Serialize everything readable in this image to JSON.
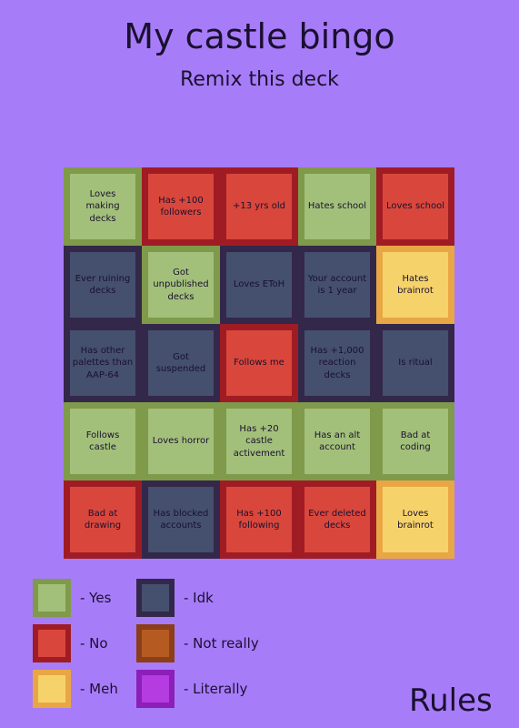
{
  "header": {
    "title": "My castle bingo",
    "subtitle": "Remix this deck"
  },
  "board": {
    "rows": [
      [
        {
          "label": "Loves making decks",
          "fill": "#a3c07a",
          "border": "#7f9a4a"
        },
        {
          "label": "Has +100 followers",
          "fill": "#d9473c",
          "border": "#a01c24"
        },
        {
          "label": "+13 yrs old",
          "fill": "#d9473c",
          "border": "#a01c24"
        },
        {
          "label": "Hates school",
          "fill": "#a3c07a",
          "border": "#7f9a4a"
        },
        {
          "label": "Loves school",
          "fill": "#d9473c",
          "border": "#a01c24"
        }
      ],
      [
        {
          "label": "Ever ruining decks",
          "fill": "#44506e",
          "border": "#33284a"
        },
        {
          "label": "Got unpublished decks",
          "fill": "#a3c07a",
          "border": "#7f9a4a"
        },
        {
          "label": "Loves EToH",
          "fill": "#44506e",
          "border": "#33284a"
        },
        {
          "label": "Your account is 1 year",
          "fill": "#44506e",
          "border": "#33284a"
        },
        {
          "label": "Hates brainrot",
          "fill": "#f5d36a",
          "border": "#e8a744"
        }
      ],
      [
        {
          "label": "Has other palettes than AAP-64",
          "fill": "#44506e",
          "border": "#33284a"
        },
        {
          "label": "Got suspended",
          "fill": "#44506e",
          "border": "#33284a"
        },
        {
          "label": "Follows me",
          "fill": "#d9473c",
          "border": "#a01c24"
        },
        {
          "label": "Has +1,000 reaction decks",
          "fill": "#44506e",
          "border": "#33284a"
        },
        {
          "label": "Is ritual",
          "fill": "#44506e",
          "border": "#33284a"
        }
      ],
      [
        {
          "label": "Follows castle",
          "fill": "#a3c07a",
          "border": "#7f9a4a"
        },
        {
          "label": "Loves horror",
          "fill": "#a3c07a",
          "border": "#7f9a4a"
        },
        {
          "label": "Has +20 castle activement",
          "fill": "#a3c07a",
          "border": "#7f9a4a"
        },
        {
          "label": "Has an alt account",
          "fill": "#a3c07a",
          "border": "#7f9a4a"
        },
        {
          "label": "Bad at coding",
          "fill": "#a3c07a",
          "border": "#7f9a4a"
        }
      ],
      [
        {
          "label": "Bad at drawing",
          "fill": "#d9473c",
          "border": "#a01c24"
        },
        {
          "label": "Has blocked accounts",
          "fill": "#44506e",
          "border": "#33284a"
        },
        {
          "label": "Has +100 following",
          "fill": "#d9473c",
          "border": "#a01c24"
        },
        {
          "label": "Ever deleted decks",
          "fill": "#d9473c",
          "border": "#a01c24"
        },
        {
          "label": "Loves brainrot",
          "fill": "#f5d36a",
          "border": "#e8a744"
        }
      ]
    ]
  },
  "legend": [
    {
      "label": "- Yes",
      "fill": "#a3c07a",
      "border": "#7f9a4a"
    },
    {
      "label": "- No",
      "fill": "#d9473c",
      "border": "#a01c24"
    },
    {
      "label": "- Meh",
      "fill": "#f5d36a",
      "border": "#e8a744"
    },
    {
      "label": "- Idk",
      "fill": "#44506e",
      "border": "#33284a"
    },
    {
      "label": "- Not really",
      "fill": "#b55b22",
      "border": "#8b3e18"
    },
    {
      "label": "- Literally",
      "fill": "#b43ce0",
      "border": "#8b1fb8"
    }
  ],
  "footer": {
    "rules": "Rules"
  }
}
